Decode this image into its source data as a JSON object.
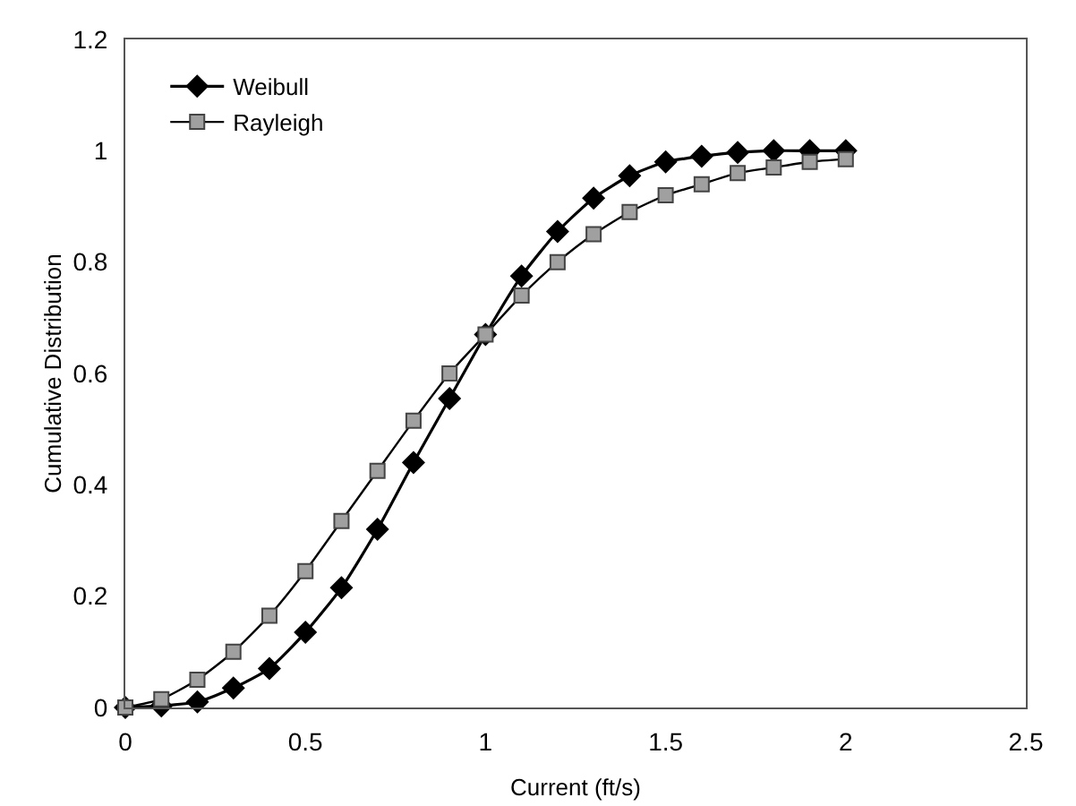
{
  "chart_data": {
    "type": "line",
    "xlabel": "Current (ft/s)",
    "ylabel": "Cumulative Distribution",
    "x": [
      0,
      0.1,
      0.2,
      0.3,
      0.4,
      0.5,
      0.6,
      0.7,
      0.8,
      0.9,
      1,
      1.1,
      1.2,
      1.3,
      1.4,
      1.5,
      1.6,
      1.7,
      1.8,
      1.9,
      2
    ],
    "series": [
      {
        "name": "Weibull",
        "color": "#000000",
        "marker": "diamond",
        "values": [
          0,
          0.003,
          0.01,
          0.035,
          0.07,
          0.135,
          0.215,
          0.32,
          0.44,
          0.555,
          0.67,
          0.775,
          0.855,
          0.915,
          0.955,
          0.98,
          0.99,
          0.997,
          1,
          1,
          1
        ]
      },
      {
        "name": "Rayleigh",
        "color": "#a0a0a0",
        "marker": "square",
        "values": [
          0,
          0.015,
          0.05,
          0.1,
          0.165,
          0.245,
          0.335,
          0.425,
          0.515,
          0.6,
          0.67,
          0.74,
          0.8,
          0.85,
          0.89,
          0.92,
          0.94,
          0.96,
          0.97,
          0.98,
          0.985
        ]
      }
    ],
    "xlim": [
      0,
      2.5
    ],
    "xticks": [
      0,
      0.5,
      1,
      1.5,
      2,
      2.5
    ],
    "ylim": [
      0,
      1.2
    ],
    "yticks": [
      0,
      0.2,
      0.4,
      0.6,
      0.8,
      1,
      1.2
    ],
    "grid": false,
    "legend": "top left",
    "line_style": "solid"
  }
}
